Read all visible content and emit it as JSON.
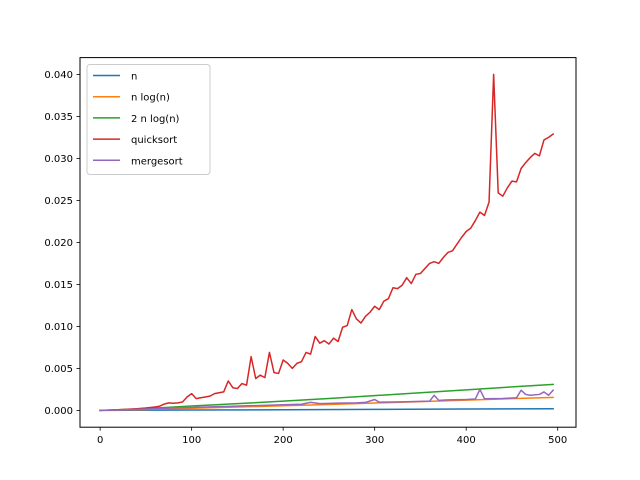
{
  "chart_data": {
    "type": "line",
    "title": "",
    "xlabel": "",
    "ylabel": "",
    "xlim": [
      -22,
      520
    ],
    "ylim": [
      -0.002,
      0.042
    ],
    "xticks": [
      0,
      100,
      200,
      300,
      400,
      500
    ],
    "xtick_labels": [
      "0",
      "100",
      "200",
      "300",
      "400",
      "500"
    ],
    "yticks": [
      0.0,
      0.005,
      0.01,
      0.015,
      0.02,
      0.025,
      0.03,
      0.035,
      0.04
    ],
    "ytick_labels": [
      "0.000",
      "0.005",
      "0.010",
      "0.015",
      "0.020",
      "0.025",
      "0.030",
      "0.035",
      "0.040"
    ],
    "grid": false,
    "legend_position": "top-left",
    "series": [
      {
        "name": "n",
        "color": "#1f77b4",
        "points": [
          [
            0,
            0.0
          ],
          [
            100,
            4e-05
          ],
          [
            200,
            8e-05
          ],
          [
            300,
            0.00012
          ],
          [
            400,
            0.00016
          ],
          [
            495,
            0.0002
          ]
        ]
      },
      {
        "name": "n log(n)",
        "color": "#ff7f0e",
        "points": [
          [
            0,
            0.0
          ],
          [
            50,
            0.0001
          ],
          [
            100,
            0.00026
          ],
          [
            150,
            0.0004
          ],
          [
            200,
            0.00055
          ],
          [
            250,
            0.00071
          ],
          [
            300,
            0.00088
          ],
          [
            350,
            0.00105
          ],
          [
            400,
            0.00122
          ],
          [
            450,
            0.0014
          ],
          [
            495,
            0.00155
          ]
        ]
      },
      {
        "name": "2 n log(n)",
        "color": "#2ca02c",
        "points": [
          [
            0,
            0.0
          ],
          [
            50,
            0.00021
          ],
          [
            100,
            0.00052
          ],
          [
            150,
            0.0008
          ],
          [
            200,
            0.0011
          ],
          [
            250,
            0.00142
          ],
          [
            300,
            0.00176
          ],
          [
            350,
            0.0021
          ],
          [
            400,
            0.00244
          ],
          [
            450,
            0.0028
          ],
          [
            495,
            0.0031
          ]
        ]
      },
      {
        "name": "quicksort",
        "color": "#d62728",
        "points": [
          [
            0,
            0.0
          ],
          [
            10,
            3e-05
          ],
          [
            20,
            8e-05
          ],
          [
            30,
            0.00014
          ],
          [
            40,
            0.0002
          ],
          [
            50,
            0.00028
          ],
          [
            60,
            0.0004
          ],
          [
            65,
            0.0005
          ],
          [
            70,
            0.00075
          ],
          [
            75,
            0.0009
          ],
          [
            80,
            0.00085
          ],
          [
            85,
            0.0009
          ],
          [
            90,
            0.001
          ],
          [
            95,
            0.0016
          ],
          [
            100,
            0.002
          ],
          [
            105,
            0.0014
          ],
          [
            110,
            0.0015
          ],
          [
            115,
            0.0016
          ],
          [
            120,
            0.0017
          ],
          [
            125,
            0.002
          ],
          [
            130,
            0.0021
          ],
          [
            135,
            0.0022
          ],
          [
            140,
            0.0035
          ],
          [
            145,
            0.0027
          ],
          [
            150,
            0.0026
          ],
          [
            155,
            0.0032
          ],
          [
            160,
            0.003
          ],
          [
            165,
            0.0064
          ],
          [
            170,
            0.0038
          ],
          [
            175,
            0.0042
          ],
          [
            180,
            0.0039
          ],
          [
            185,
            0.0069
          ],
          [
            190,
            0.0045
          ],
          [
            195,
            0.0044
          ],
          [
            200,
            0.006
          ],
          [
            205,
            0.0056
          ],
          [
            210,
            0.005
          ],
          [
            215,
            0.0056
          ],
          [
            220,
            0.0058
          ],
          [
            225,
            0.0069
          ],
          [
            230,
            0.0067
          ],
          [
            235,
            0.0088
          ],
          [
            240,
            0.008
          ],
          [
            245,
            0.0083
          ],
          [
            250,
            0.0079
          ],
          [
            255,
            0.0086
          ],
          [
            260,
            0.0082
          ],
          [
            265,
            0.0099
          ],
          [
            270,
            0.0101
          ],
          [
            275,
            0.012
          ],
          [
            280,
            0.0109
          ],
          [
            285,
            0.0104
          ],
          [
            290,
            0.0112
          ],
          [
            295,
            0.0117
          ],
          [
            300,
            0.0124
          ],
          [
            305,
            0.012
          ],
          [
            310,
            0.013
          ],
          [
            315,
            0.0133
          ],
          [
            320,
            0.0146
          ],
          [
            325,
            0.0145
          ],
          [
            330,
            0.0149
          ],
          [
            335,
            0.0158
          ],
          [
            340,
            0.0151
          ],
          [
            345,
            0.0162
          ],
          [
            350,
            0.0163
          ],
          [
            355,
            0.0169
          ],
          [
            360,
            0.0175
          ],
          [
            365,
            0.0177
          ],
          [
            370,
            0.0175
          ],
          [
            375,
            0.0182
          ],
          [
            380,
            0.0188
          ],
          [
            385,
            0.019
          ],
          [
            390,
            0.0198
          ],
          [
            395,
            0.0206
          ],
          [
            400,
            0.0213
          ],
          [
            405,
            0.0217
          ],
          [
            410,
            0.0226
          ],
          [
            415,
            0.0236
          ],
          [
            420,
            0.0232
          ],
          [
            425,
            0.0248
          ],
          [
            430,
            0.04
          ],
          [
            435,
            0.0259
          ],
          [
            440,
            0.0255
          ],
          [
            445,
            0.0265
          ],
          [
            450,
            0.0273
          ],
          [
            455,
            0.0272
          ],
          [
            460,
            0.0288
          ],
          [
            465,
            0.0295
          ],
          [
            470,
            0.0301
          ],
          [
            475,
            0.0306
          ],
          [
            480,
            0.0303
          ],
          [
            485,
            0.0322
          ],
          [
            490,
            0.0325
          ],
          [
            495,
            0.0329
          ]
        ]
      },
      {
        "name": "mergesort",
        "color": "#9467bd",
        "points": [
          [
            0,
            0.0
          ],
          [
            20,
            5e-05
          ],
          [
            40,
            0.00012
          ],
          [
            60,
            0.0002
          ],
          [
            80,
            0.0003
          ],
          [
            100,
            0.00035
          ],
          [
            120,
            0.00042
          ],
          [
            140,
            0.00048
          ],
          [
            160,
            0.00055
          ],
          [
            180,
            0.0006
          ],
          [
            200,
            0.00068
          ],
          [
            220,
            0.00073
          ],
          [
            230,
            0.00095
          ],
          [
            240,
            0.0008
          ],
          [
            260,
            0.00086
          ],
          [
            280,
            0.0009
          ],
          [
            290,
            0.00095
          ],
          [
            300,
            0.0013
          ],
          [
            305,
            0.00098
          ],
          [
            320,
            0.001
          ],
          [
            340,
            0.00105
          ],
          [
            360,
            0.0011
          ],
          [
            365,
            0.0018
          ],
          [
            370,
            0.0012
          ],
          [
            380,
            0.00125
          ],
          [
            400,
            0.0013
          ],
          [
            410,
            0.00135
          ],
          [
            415,
            0.0025
          ],
          [
            420,
            0.00138
          ],
          [
            440,
            0.00142
          ],
          [
            455,
            0.0015
          ],
          [
            460,
            0.0024
          ],
          [
            465,
            0.0019
          ],
          [
            470,
            0.0018
          ],
          [
            480,
            0.0019
          ],
          [
            485,
            0.0022
          ],
          [
            490,
            0.0018
          ],
          [
            495,
            0.0024
          ]
        ]
      }
    ]
  }
}
